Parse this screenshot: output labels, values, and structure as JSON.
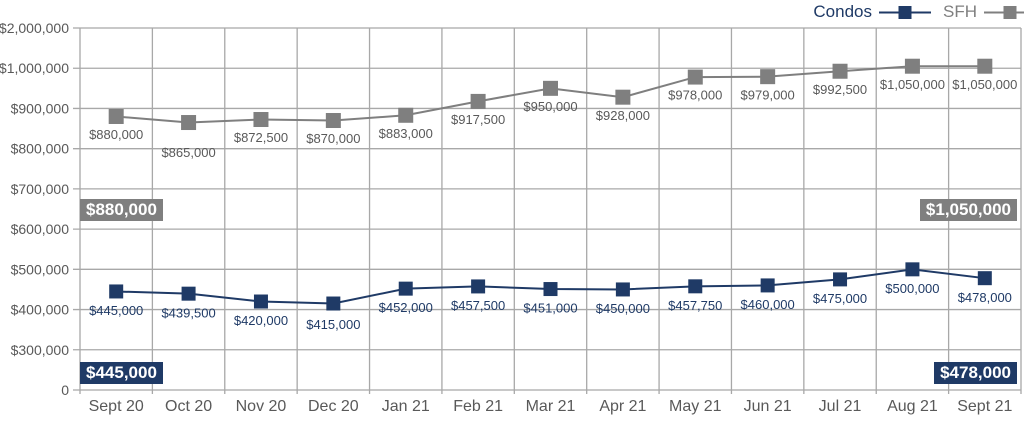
{
  "colors": {
    "navy": "#1f3a66",
    "gray": "#7f7f7f",
    "grid": "#a8a8a8",
    "axis_text": "#595959",
    "background": "#ffffff",
    "callout_text": "#ffffff"
  },
  "legend": {
    "position": "top-right",
    "items": [
      {
        "label": "Condos",
        "color": "#1f3a66"
      },
      {
        "label": "SFH",
        "color": "#7f7f7f"
      }
    ]
  },
  "chart_data": {
    "type": "line",
    "title": "",
    "xlabel": "",
    "ylabel": "",
    "grid": true,
    "legend_position": "top-right",
    "marker": "square",
    "categories": [
      "Sept 20",
      "Oct 20",
      "Nov 20",
      "Dec 20",
      "Jan 21",
      "Feb 21",
      "Mar 21",
      "Apr 21",
      "May 21",
      "Jun 21",
      "Jul 21",
      "Aug 21",
      "Sept 21"
    ],
    "y_axis": {
      "note": "non-linear axis: evenly spaced gridlines with these tick values top to bottom",
      "ticks": [
        {
          "value": 2000000,
          "label": "$2,000,000"
        },
        {
          "value": 1000000,
          "label": "$1,000,000"
        },
        {
          "value": 900000,
          "label": "$900,000"
        },
        {
          "value": 800000,
          "label": "$800,000"
        },
        {
          "value": 700000,
          "label": "$700,000"
        },
        {
          "value": 600000,
          "label": "$600,000"
        },
        {
          "value": 500000,
          "label": "$500,000"
        },
        {
          "value": 400000,
          "label": "$400,000"
        },
        {
          "value": 300000,
          "label": "$300,000"
        },
        {
          "value": 0,
          "label": "0"
        }
      ]
    },
    "series": [
      {
        "name": "SFH",
        "color": "#7f7f7f",
        "label_color": "#595959",
        "marker_size": 15,
        "values": [
          880000,
          865000,
          872500,
          870000,
          883000,
          917500,
          950000,
          928000,
          978000,
          979000,
          992500,
          1050000,
          1050000
        ],
        "labels": [
          "$880,000",
          "$865,000",
          "$872,500",
          "$870,000",
          "$883,000",
          "$917,500",
          "$950,000",
          "$928,000",
          "$978,000",
          "$979,000",
          "$992,500",
          "$1,050,000",
          "$1,050,000"
        ],
        "label_dy_default": 13,
        "label_dy_exceptions": {
          "1": 25
        }
      },
      {
        "name": "Condos",
        "color": "#1f3a66",
        "label_color": "#1f3a66",
        "marker_size": 14,
        "values": [
          445000,
          439500,
          420000,
          415000,
          452000,
          457500,
          451000,
          450000,
          457750,
          460000,
          475000,
          500000,
          478000
        ],
        "labels": [
          "$445,000",
          "$439,500",
          "$420,000",
          "$415,000",
          "$452,000",
          "$457,500",
          "$451,000",
          "$450,000",
          "$457,750",
          "$460,000",
          "$475,000",
          "$500,000",
          "$478,000"
        ],
        "label_dy_default": 14,
        "label_dy_exceptions": {
          "3": 16
        }
      }
    ]
  },
  "callouts": [
    {
      "id": "sfh-start",
      "series": "SFH",
      "text": "$880,000",
      "color": "#7f7f7f"
    },
    {
      "id": "sfh-end",
      "series": "SFH",
      "text": "$1,050,000",
      "color": "#7f7f7f"
    },
    {
      "id": "condos-start",
      "series": "Condos",
      "text": "$445,000",
      "color": "#1f3a66"
    },
    {
      "id": "condos-end",
      "series": "Condos",
      "text": "$478,000",
      "color": "#1f3a66"
    }
  ]
}
